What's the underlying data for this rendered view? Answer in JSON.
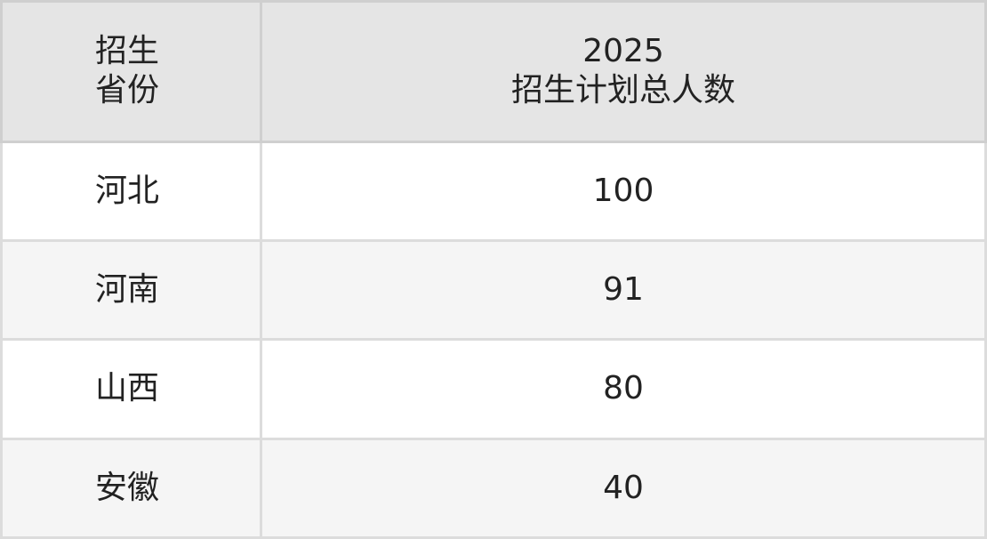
{
  "table": {
    "headers": [
      {
        "line1": "招生",
        "line2": "省份"
      },
      {
        "line1": "2025",
        "line2": "招生计划总人数"
      }
    ],
    "rows": [
      {
        "province": "河北",
        "total": "100"
      },
      {
        "province": "河南",
        "total": "91"
      },
      {
        "province": "山西",
        "total": "80"
      },
      {
        "province": "安徽",
        "total": "40"
      }
    ]
  },
  "colors": {
    "header_bg": "#e5e5e5",
    "alt_row_bg": "#f5f5f5",
    "border": "#dcdcdc"
  }
}
